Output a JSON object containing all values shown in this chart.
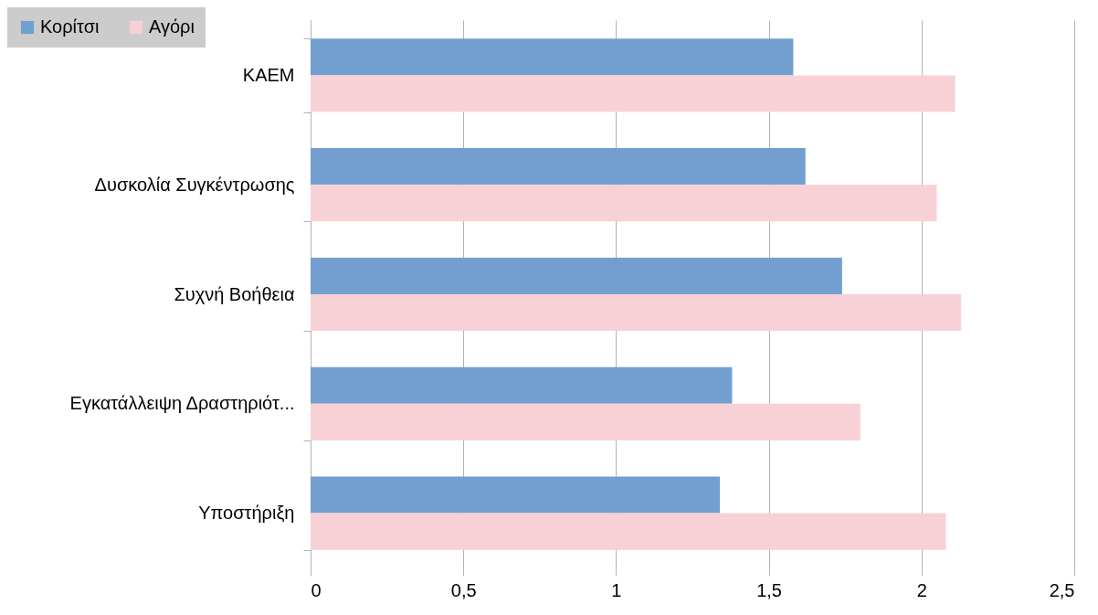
{
  "chart_data": {
    "type": "bar",
    "orientation": "horizontal",
    "categories": [
      "ΚΑΕΜ",
      "Δυσκολία Συγκέντρωσης",
      "Συχνή Βοήθεια",
      "Εγκατάλλειψη Δραστηριότ...",
      "Υποστήριξη"
    ],
    "series": [
      {
        "name": "Κορίτσι",
        "color": "#729fcf",
        "values": [
          1.58,
          1.62,
          1.74,
          1.38,
          1.34
        ]
      },
      {
        "name": "Αγόρι",
        "color": "#f7d1d5",
        "values": [
          2.11,
          2.05,
          2.13,
          1.8,
          2.08
        ]
      }
    ],
    "xlim": [
      0,
      2.5
    ],
    "xticks": [
      0,
      {
        "value": 0.5,
        "label": "0,5"
      },
      1,
      {
        "value": 1.5,
        "label": "1,5"
      },
      2,
      {
        "value": 2.5,
        "label": "2,5"
      }
    ],
    "grid": "x",
    "legend": "top left"
  }
}
